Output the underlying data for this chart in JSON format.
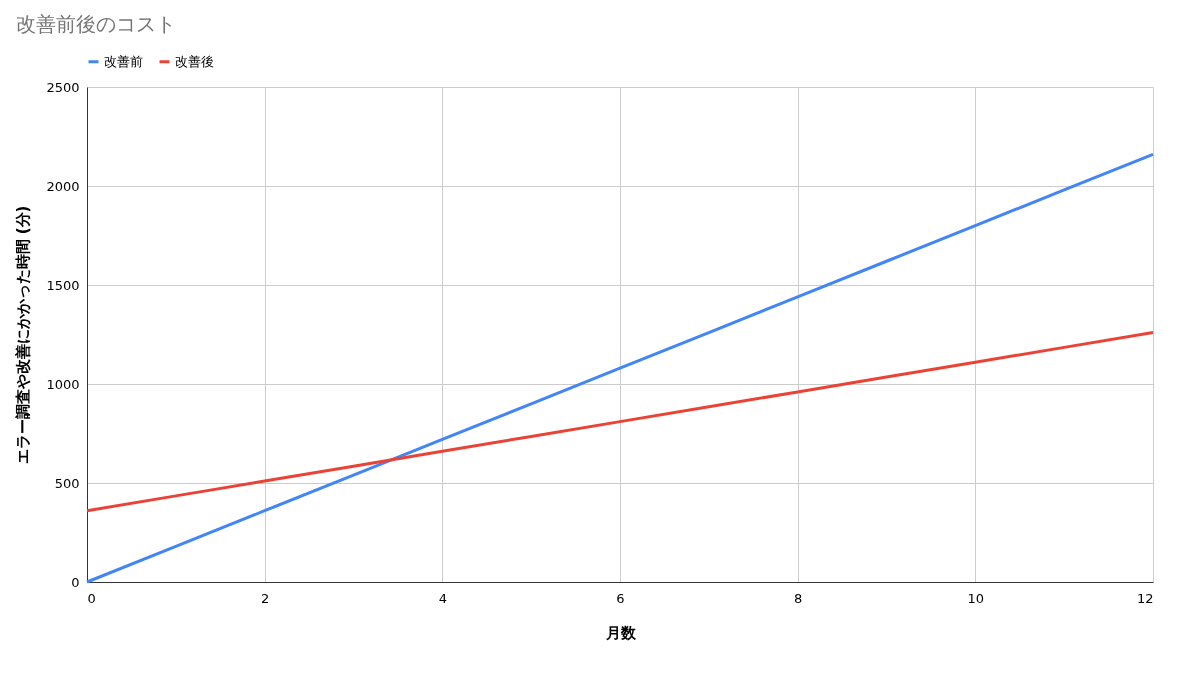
{
  "chart_data": {
    "type": "line",
    "title": "改善前後のコスト",
    "xlabel": "月数",
    "ylabel": "エラー調査や改善にかかった時間 (分)",
    "x": [
      0,
      1,
      2,
      3,
      4,
      5,
      6,
      7,
      8,
      9,
      10,
      11,
      12
    ],
    "series": [
      {
        "name": "改善前",
        "color": "#4285f4",
        "values": [
          0,
          180,
          360,
          540,
          720,
          900,
          1080,
          1260,
          1440,
          1620,
          1800,
          1980,
          2160
        ]
      },
      {
        "name": "改善後",
        "color": "#ea4335",
        "values": [
          360,
          435,
          510,
          585,
          660,
          735,
          810,
          885,
          960,
          1035,
          1110,
          1185,
          1260
        ]
      }
    ],
    "xlim": [
      0,
      12
    ],
    "xticks": [
      0,
      2,
      4,
      6,
      8,
      10,
      12
    ],
    "ylim": [
      0,
      2500
    ],
    "yticks": [
      0,
      500,
      1000,
      1500,
      2000,
      2500
    ],
    "grid": true,
    "legend": "top",
    "marker": "none",
    "line_style": "solid"
  }
}
